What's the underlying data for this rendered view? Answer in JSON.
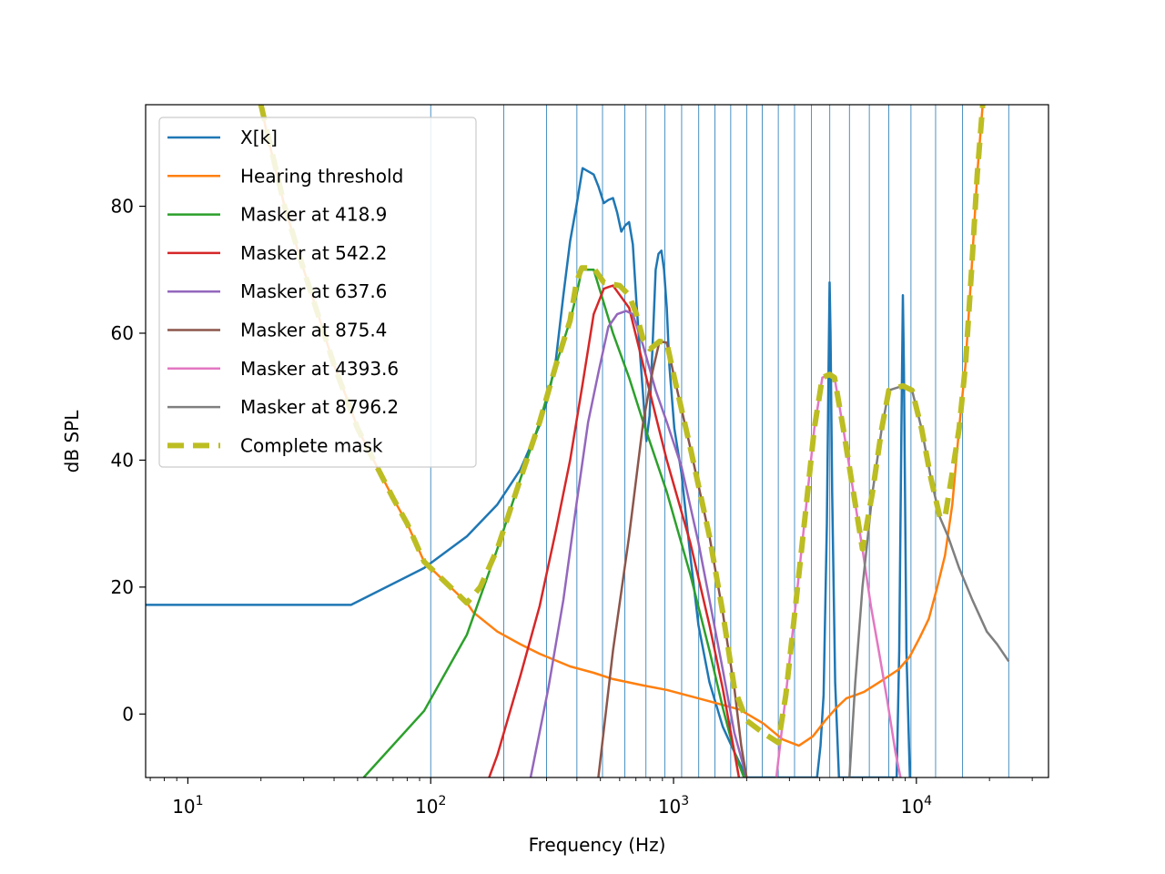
{
  "chart_data": {
    "type": "line",
    "title": "",
    "xlabel": "Frequency (Hz)",
    "ylabel": "dB SPL",
    "xscale": "log",
    "xlim": [
      6.7,
      35000
    ],
    "ylim": [
      -10,
      96
    ],
    "grid": false,
    "legend_position": "upper-left",
    "x_ticks": [
      {
        "value": 10,
        "base": "10",
        "exp": "1"
      },
      {
        "value": 100,
        "base": "10",
        "exp": "2"
      },
      {
        "value": 1000,
        "base": "10",
        "exp": "3"
      },
      {
        "value": 10000,
        "base": "10",
        "exp": "4"
      }
    ],
    "y_ticks": [
      0,
      20,
      40,
      60,
      80
    ],
    "band_edges_hz": [
      100,
      200,
      300,
      400,
      510,
      630,
      770,
      920,
      1080,
      1270,
      1480,
      1720,
      2000,
      2320,
      2700,
      3150,
      3700,
      4400,
      5300,
      6400,
      7700,
      9500,
      12000,
      15500,
      24000
    ],
    "series": [
      {
        "name": "X[k]",
        "color": "#1f77b4",
        "width": 2.5,
        "dash": "",
        "points": [
          [
            6.7,
            17.2
          ],
          [
            47,
            17.2
          ],
          [
            94,
            23
          ],
          [
            141,
            28
          ],
          [
            188,
            33
          ],
          [
            234,
            38.5
          ],
          [
            281,
            45.5
          ],
          [
            305,
            50
          ],
          [
            328,
            56
          ],
          [
            352,
            66
          ],
          [
            375,
            74.5
          ],
          [
            398,
            80
          ],
          [
            422,
            86
          ],
          [
            445,
            85.5
          ],
          [
            469,
            85
          ],
          [
            492,
            83
          ],
          [
            516,
            80.5
          ],
          [
            539,
            81
          ],
          [
            563,
            81.3
          ],
          [
            586,
            79
          ],
          [
            609,
            76
          ],
          [
            633,
            77
          ],
          [
            656,
            77.5
          ],
          [
            680,
            74
          ],
          [
            703,
            65
          ],
          [
            727,
            57
          ],
          [
            750,
            50
          ],
          [
            773,
            43
          ],
          [
            797,
            47
          ],
          [
            820,
            58
          ],
          [
            844,
            70
          ],
          [
            867,
            72.5
          ],
          [
            891,
            73
          ],
          [
            914,
            70
          ],
          [
            938,
            64
          ],
          [
            961,
            55
          ],
          [
            1008,
            45
          ],
          [
            1078,
            38
          ],
          [
            1172,
            25
          ],
          [
            1266,
            14
          ],
          [
            1406,
            5
          ],
          [
            1594,
            -2
          ],
          [
            1781,
            -6
          ],
          [
            2000,
            -10
          ],
          [
            3900,
            -10
          ],
          [
            4030,
            -5
          ],
          [
            4150,
            3
          ],
          [
            4280,
            30
          ],
          [
            4350,
            55
          ],
          [
            4394,
            68
          ],
          [
            4430,
            60
          ],
          [
            4500,
            35
          ],
          [
            4630,
            5
          ],
          [
            4800,
            -10
          ],
          [
            8300,
            -10
          ],
          [
            8500,
            10
          ],
          [
            8680,
            45
          ],
          [
            8796,
            66
          ],
          [
            8880,
            55
          ],
          [
            9100,
            10
          ],
          [
            9400,
            -10
          ]
        ]
      },
      {
        "name": "Hearing threshold",
        "color": "#ff7f0e",
        "width": 2.5,
        "dash": "",
        "points": [
          [
            20,
            96
          ],
          [
            21,
            92
          ],
          [
            25,
            80
          ],
          [
            30,
            70
          ],
          [
            35,
            62
          ],
          [
            40,
            55
          ],
          [
            47,
            48
          ],
          [
            50,
            45
          ],
          [
            60,
            39
          ],
          [
            70,
            34
          ],
          [
            80,
            30
          ],
          [
            94,
            24
          ],
          [
            100,
            23
          ],
          [
            141,
            17.5
          ],
          [
            150,
            16
          ],
          [
            188,
            13
          ],
          [
            234,
            11
          ],
          [
            281,
            9.5
          ],
          [
            375,
            7.5
          ],
          [
            469,
            6.5
          ],
          [
            563,
            5.5
          ],
          [
            750,
            4.5
          ],
          [
            938,
            3.8
          ],
          [
            1125,
            3
          ],
          [
            1406,
            2
          ],
          [
            1875,
            0.7
          ],
          [
            2344,
            -1.5
          ],
          [
            2813,
            -4
          ],
          [
            3281,
            -5
          ],
          [
            3750,
            -3.5
          ],
          [
            4219,
            -1
          ],
          [
            4688,
            1
          ],
          [
            5156,
            2.5
          ],
          [
            5625,
            3
          ],
          [
            6094,
            3.5
          ],
          [
            7031,
            5
          ],
          [
            8438,
            7
          ],
          [
            9375,
            9
          ],
          [
            10313,
            12
          ],
          [
            11250,
            15
          ],
          [
            12188,
            20
          ],
          [
            13125,
            25
          ],
          [
            14063,
            33
          ],
          [
            15000,
            45
          ],
          [
            15938,
            55
          ],
          [
            16875,
            70
          ],
          [
            17813,
            85
          ],
          [
            18750,
            96
          ]
        ]
      },
      {
        "name": "Masker at 418.9",
        "color": "#2ca02c",
        "width": 2.5,
        "dash": "",
        "points": [
          [
            53,
            -10
          ],
          [
            94,
            0.5
          ],
          [
            141,
            12.5
          ],
          [
            188,
            26
          ],
          [
            234,
            37
          ],
          [
            281,
            46
          ],
          [
            328,
            55
          ],
          [
            375,
            62
          ],
          [
            398,
            66
          ],
          [
            418.9,
            70
          ],
          [
            469,
            70
          ],
          [
            563,
            60
          ],
          [
            656,
            53
          ],
          [
            750,
            46
          ],
          [
            938,
            35
          ],
          [
            1172,
            22
          ],
          [
            1406,
            10
          ],
          [
            1594,
            1
          ],
          [
            1781,
            -6
          ],
          [
            1950,
            -10
          ]
        ]
      },
      {
        "name": "Masker at 542.2",
        "color": "#d62728",
        "width": 2.5,
        "dash": "",
        "points": [
          [
            174,
            -10
          ],
          [
            188,
            -6.5
          ],
          [
            234,
            6
          ],
          [
            281,
            17
          ],
          [
            328,
            29
          ],
          [
            375,
            40
          ],
          [
            422,
            52
          ],
          [
            469,
            63
          ],
          [
            516,
            67
          ],
          [
            542.2,
            67.3
          ],
          [
            563,
            67.5
          ],
          [
            656,
            64
          ],
          [
            750,
            55
          ],
          [
            844,
            47
          ],
          [
            938,
            40
          ],
          [
            1172,
            27
          ],
          [
            1406,
            14
          ],
          [
            1594,
            4
          ],
          [
            1781,
            -6
          ],
          [
            1860,
            -10
          ]
        ]
      },
      {
        "name": "Masker at 637.6",
        "color": "#9467bd",
        "width": 2.5,
        "dash": "",
        "points": [
          [
            258,
            -10
          ],
          [
            305,
            4
          ],
          [
            352,
            18
          ],
          [
            398,
            33
          ],
          [
            445,
            46
          ],
          [
            492,
            54
          ],
          [
            539,
            61
          ],
          [
            586,
            63
          ],
          [
            637.6,
            63.5
          ],
          [
            680,
            63
          ],
          [
            750,
            58
          ],
          [
            844,
            51
          ],
          [
            938,
            46
          ],
          [
            1078,
            39
          ],
          [
            1266,
            27
          ],
          [
            1406,
            18
          ],
          [
            1594,
            7
          ],
          [
            1781,
            -3
          ],
          [
            2000,
            -10
          ]
        ]
      },
      {
        "name": "Masker at 875.4",
        "color": "#8c564b",
        "width": 2.5,
        "dash": "",
        "points": [
          [
            490,
            -10
          ],
          [
            563,
            10
          ],
          [
            656,
            28
          ],
          [
            750,
            46
          ],
          [
            820,
            54
          ],
          [
            875.4,
            58.7
          ],
          [
            938,
            58.5
          ],
          [
            1008,
            53
          ],
          [
            1172,
            42
          ],
          [
            1406,
            28
          ],
          [
            1594,
            16
          ],
          [
            1781,
            4
          ],
          [
            1900,
            -5
          ],
          [
            2000,
            -10
          ]
        ]
      },
      {
        "name": "Masker at 4393.6",
        "color": "#e377c2",
        "width": 2.5,
        "dash": "",
        "points": [
          [
            2650,
            -10
          ],
          [
            2900,
            3
          ],
          [
            3200,
            18
          ],
          [
            3500,
            32
          ],
          [
            3800,
            45
          ],
          [
            4100,
            53
          ],
          [
            4393.6,
            53.5
          ],
          [
            4600,
            53
          ],
          [
            5000,
            45
          ],
          [
            5500,
            35
          ],
          [
            6000,
            26
          ],
          [
            6500,
            17
          ],
          [
            7000,
            10
          ],
          [
            7600,
            2
          ],
          [
            8200,
            -6
          ],
          [
            8600,
            -10
          ]
        ]
      },
      {
        "name": "Masker at 8796.2",
        "color": "#7f7f7f",
        "width": 2.5,
        "dash": "",
        "points": [
          [
            5300,
            -10
          ],
          [
            5600,
            5
          ],
          [
            6000,
            20
          ],
          [
            6600,
            35
          ],
          [
            7200,
            45
          ],
          [
            7700,
            51
          ],
          [
            8796.2,
            51.7
          ],
          [
            9600,
            51
          ],
          [
            10500,
            45
          ],
          [
            11500,
            37
          ],
          [
            12500,
            31
          ],
          [
            13500,
            28
          ],
          [
            15000,
            23
          ],
          [
            17000,
            18
          ],
          [
            19500,
            13
          ],
          [
            21500,
            11
          ],
          [
            24000,
            8.3
          ]
        ]
      },
      {
        "name": "Complete mask",
        "color": "#bcbd22",
        "width": 6,
        "dash": "18,10",
        "points": [
          [
            20,
            96
          ],
          [
            25,
            80
          ],
          [
            30,
            70
          ],
          [
            40,
            55
          ],
          [
            50,
            45
          ],
          [
            60,
            39
          ],
          [
            70,
            34
          ],
          [
            80,
            30
          ],
          [
            94,
            24
          ],
          [
            141,
            17.5
          ],
          [
            160,
            20
          ],
          [
            188,
            26
          ],
          [
            234,
            37
          ],
          [
            281,
            46
          ],
          [
            328,
            55
          ],
          [
            375,
            62
          ],
          [
            398,
            68
          ],
          [
            418.9,
            70.3
          ],
          [
            469,
            70.3
          ],
          [
            516,
            68
          ],
          [
            542.2,
            67.8
          ],
          [
            600,
            67.5
          ],
          [
            656,
            66
          ],
          [
            703,
            63
          ],
          [
            750,
            59
          ],
          [
            800,
            57.5
          ],
          [
            875.4,
            58.7
          ],
          [
            938,
            58.5
          ],
          [
            1008,
            53
          ],
          [
            1172,
            42
          ],
          [
            1406,
            28
          ],
          [
            1594,
            16
          ],
          [
            1781,
            4
          ],
          [
            2000,
            -1
          ],
          [
            2344,
            -3
          ],
          [
            2700,
            -4.5
          ],
          [
            2900,
            3
          ],
          [
            3200,
            18
          ],
          [
            3500,
            32
          ],
          [
            3800,
            45
          ],
          [
            4100,
            53
          ],
          [
            4393.6,
            53.5
          ],
          [
            4600,
            53
          ],
          [
            5000,
            45
          ],
          [
            5500,
            35
          ],
          [
            6000,
            26
          ],
          [
            6600,
            35
          ],
          [
            7200,
            45
          ],
          [
            7700,
            51
          ],
          [
            8796.2,
            51.7
          ],
          [
            9600,
            51
          ],
          [
            10500,
            45
          ],
          [
            11500,
            37
          ],
          [
            12500,
            31
          ],
          [
            13125,
            31
          ],
          [
            14063,
            38
          ],
          [
            15000,
            45
          ],
          [
            15938,
            55
          ],
          [
            16875,
            70
          ],
          [
            17813,
            85
          ],
          [
            18750,
            96
          ]
        ]
      }
    ]
  }
}
